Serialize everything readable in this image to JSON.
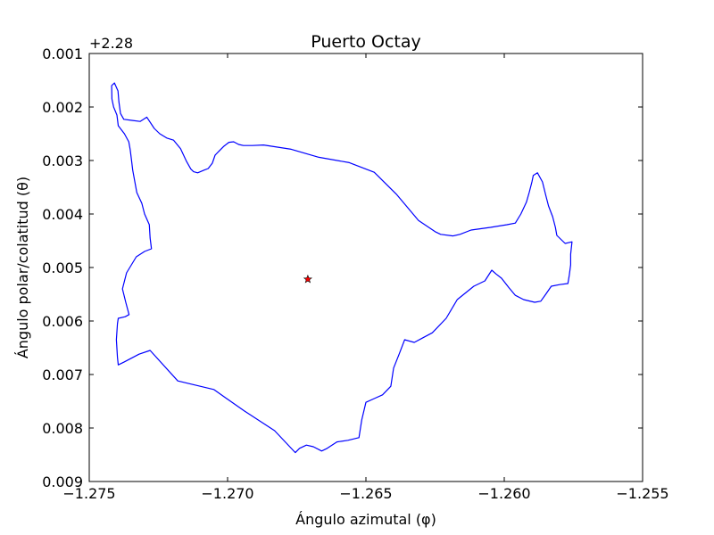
{
  "chart_data": {
    "type": "line",
    "title": "Puerto Octay",
    "xlabel": "Ángulo azimutal (φ)",
    "ylabel": "Ángulo polar/colatitud (θ)",
    "y_offset_label": "+2.28",
    "xlim": [
      -1.275,
      -1.255
    ],
    "ylim": [
      0.009,
      0.001
    ],
    "y_inverted": true,
    "grid": false,
    "x_ticks": [
      {
        "value": -1.275,
        "label": "−1.275"
      },
      {
        "value": -1.27,
        "label": "−1.270"
      },
      {
        "value": -1.265,
        "label": "−1.265"
      },
      {
        "value": -1.26,
        "label": "−1.260"
      },
      {
        "value": -1.255,
        "label": "−1.255"
      }
    ],
    "y_ticks": [
      {
        "value": 0.001,
        "label": "0.001"
      },
      {
        "value": 0.002,
        "label": "0.002"
      },
      {
        "value": 0.003,
        "label": "0.003"
      },
      {
        "value": 0.004,
        "label": "0.004"
      },
      {
        "value": 0.005,
        "label": "0.005"
      },
      {
        "value": 0.006,
        "label": "0.006"
      },
      {
        "value": 0.007,
        "label": "0.007"
      },
      {
        "value": 0.008,
        "label": "0.008"
      },
      {
        "value": 0.009,
        "label": "0.009"
      }
    ],
    "series": [
      {
        "type": "line",
        "color": "#0000ff",
        "points": [
          [
            -1.27418,
            0.00185
          ],
          [
            -1.27419,
            0.0016
          ],
          [
            -1.27409,
            0.00155
          ],
          [
            -1.27396,
            0.0017
          ],
          [
            -1.27393,
            0.0019
          ],
          [
            -1.27387,
            0.00212
          ],
          [
            -1.27375,
            0.00223
          ],
          [
            -1.27346,
            0.00225
          ],
          [
            -1.27316,
            0.00227
          ],
          [
            -1.27292,
            0.00219
          ],
          [
            -1.27265,
            0.0024
          ],
          [
            -1.27245,
            0.0025
          ],
          [
            -1.2722,
            0.00258
          ],
          [
            -1.27195,
            0.00262
          ],
          [
            -1.2717,
            0.00278
          ],
          [
            -1.27148,
            0.00302
          ],
          [
            -1.27133,
            0.00316
          ],
          [
            -1.27123,
            0.00321
          ],
          [
            -1.27108,
            0.00323
          ],
          [
            -1.27085,
            0.00318
          ],
          [
            -1.2707,
            0.00315
          ],
          [
            -1.27055,
            0.00305
          ],
          [
            -1.27045,
            0.0029
          ],
          [
            -1.2703,
            0.00282
          ],
          [
            -1.27015,
            0.00274
          ],
          [
            -1.26995,
            0.00266
          ],
          [
            -1.26978,
            0.00265
          ],
          [
            -1.2696,
            0.0027
          ],
          [
            -1.26943,
            0.00272
          ],
          [
            -1.2691,
            0.00272
          ],
          [
            -1.2687,
            0.00271
          ],
          [
            -1.2677,
            0.00279
          ],
          [
            -1.2667,
            0.00294
          ],
          [
            -1.2656,
            0.00304
          ],
          [
            -1.2647,
            0.00322
          ],
          [
            -1.2639,
            0.00363
          ],
          [
            -1.2631,
            0.00412
          ],
          [
            -1.2625,
            0.00433
          ],
          [
            -1.2623,
            0.00438
          ],
          [
            -1.26185,
            0.00441
          ],
          [
            -1.2616,
            0.00438
          ],
          [
            -1.2612,
            0.0043
          ],
          [
            -1.2605,
            0.00425
          ],
          [
            -1.2599,
            0.0042
          ],
          [
            -1.2596,
            0.00417
          ],
          [
            -1.2594,
            0.004
          ],
          [
            -1.2592,
            0.00378
          ],
          [
            -1.2591,
            0.0036
          ],
          [
            -1.259,
            0.0034
          ],
          [
            -1.25895,
            0.00328
          ],
          [
            -1.2588,
            0.00323
          ],
          [
            -1.25862,
            0.0034
          ],
          [
            -1.2585,
            0.00365
          ],
          [
            -1.2584,
            0.00385
          ],
          [
            -1.25825,
            0.00405
          ],
          [
            -1.25815,
            0.00425
          ],
          [
            -1.2581,
            0.0044
          ],
          [
            -1.2578,
            0.00455
          ],
          [
            -1.25755,
            0.00452
          ],
          [
            -1.2576,
            0.00475
          ],
          [
            -1.2576,
            0.00495
          ],
          [
            -1.25765,
            0.00515
          ],
          [
            -1.2577,
            0.0053
          ],
          [
            -1.258,
            0.00532
          ],
          [
            -1.2583,
            0.00535
          ],
          [
            -1.2585,
            0.0055
          ],
          [
            -1.25868,
            0.00563
          ],
          [
            -1.2589,
            0.00565
          ],
          [
            -1.2593,
            0.0056
          ],
          [
            -1.2596,
            0.00552
          ],
          [
            -1.25983,
            0.00538
          ],
          [
            -1.2601,
            0.0052
          ],
          [
            -1.2603,
            0.00512
          ],
          [
            -1.26045,
            0.00505
          ],
          [
            -1.2607,
            0.00525
          ],
          [
            -1.2611,
            0.00535
          ],
          [
            -1.2617,
            0.0056
          ],
          [
            -1.2621,
            0.00595
          ],
          [
            -1.2626,
            0.00622
          ],
          [
            -1.263,
            0.00633
          ],
          [
            -1.26325,
            0.0064
          ],
          [
            -1.2636,
            0.00635
          ],
          [
            -1.2638,
            0.00662
          ],
          [
            -1.264,
            0.00688
          ],
          [
            -1.2641,
            0.00722
          ],
          [
            -1.2644,
            0.00738
          ],
          [
            -1.2647,
            0.00745
          ],
          [
            -1.265,
            0.00752
          ],
          [
            -1.26515,
            0.00785
          ],
          [
            -1.26525,
            0.00818
          ],
          [
            -1.26565,
            0.00823
          ],
          [
            -1.26605,
            0.00826
          ],
          [
            -1.2664,
            0.00838
          ],
          [
            -1.2666,
            0.00843
          ],
          [
            -1.2669,
            0.00835
          ],
          [
            -1.26715,
            0.00832
          ],
          [
            -1.2674,
            0.00838
          ],
          [
            -1.26755,
            0.00846
          ],
          [
            -1.2683,
            0.00805
          ],
          [
            -1.2694,
            0.00768
          ],
          [
            -1.2705,
            0.00728
          ],
          [
            -1.2718,
            0.00712
          ],
          [
            -1.2728,
            0.00655
          ],
          [
            -1.2732,
            0.00662
          ],
          [
            -1.27375,
            0.00677
          ],
          [
            -1.27395,
            0.00682
          ],
          [
            -1.27398,
            0.00668
          ],
          [
            -1.27402,
            0.00635
          ],
          [
            -1.27398,
            0.00605
          ],
          [
            -1.27395,
            0.00595
          ],
          [
            -1.2737,
            0.00592
          ],
          [
            -1.27356,
            0.00588
          ],
          [
            -1.27368,
            0.00565
          ],
          [
            -1.2738,
            0.0054
          ],
          [
            -1.27365,
            0.0051
          ],
          [
            -1.2733,
            0.0048
          ],
          [
            -1.273,
            0.0047
          ],
          [
            -1.27275,
            0.00465
          ],
          [
            -1.2728,
            0.00445
          ],
          [
            -1.27283,
            0.0042
          ],
          [
            -1.273,
            0.004
          ],
          [
            -1.2731,
            0.0038
          ],
          [
            -1.27328,
            0.0036
          ],
          [
            -1.27335,
            0.0034
          ],
          [
            -1.27343,
            0.00318
          ],
          [
            -1.27347,
            0.003
          ],
          [
            -1.27352,
            0.0028
          ],
          [
            -1.27357,
            0.00265
          ],
          [
            -1.27373,
            0.0025
          ],
          [
            -1.27395,
            0.00235
          ],
          [
            -1.274,
            0.00215
          ],
          [
            -1.27412,
            0.002
          ],
          [
            -1.27418,
            0.00185
          ]
        ]
      },
      {
        "type": "marker",
        "marker": "star",
        "color": "#ff0000",
        "edge_color": "#000000",
        "points": [
          [
            -1.2671,
            0.00522
          ]
        ]
      }
    ]
  }
}
